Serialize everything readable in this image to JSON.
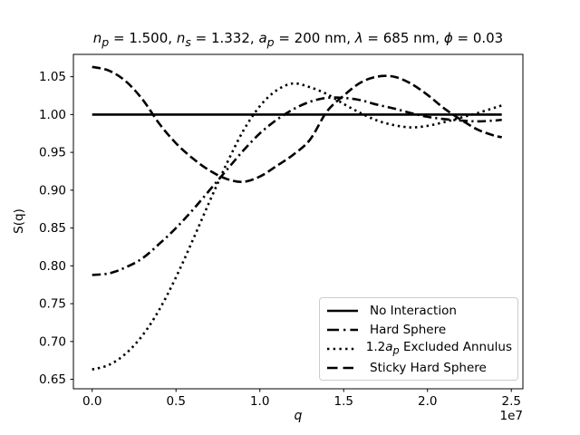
{
  "title_html": "<i>n</i><sub><i>p</i></sub> = 1.500, <i>n</i><sub><i>s</i></sub> = 1.332, <i>a</i><sub><i>p</i></sub> = 200 nm, <i>λ</i> = 685 nm, <i>ϕ</i> = 0.03",
  "axes": {
    "ylabel": "S(q)",
    "xlabel_html": "<i>q</i>",
    "offset_label": "1e7"
  },
  "legend": {
    "items": [
      {
        "label_html": "No Interaction",
        "style": "solid"
      },
      {
        "label_html": "Hard Sphere",
        "style": "dashdot"
      },
      {
        "label_html": "1.2<i>a</i><sub><i>p</i></sub> Excluded Annulus",
        "style": "dotted"
      },
      {
        "label_html": "Sticky Hard Sphere",
        "style": "dashed"
      }
    ]
  },
  "colors": {
    "line": "#000000",
    "text": "#000000",
    "legend_border": "#cccccc",
    "background": "#ffffff"
  },
  "chart_data": {
    "type": "line",
    "title": "n_p = 1.500, n_s = 1.332, a_p = 200 nm, lambda = 685 nm, phi = 0.03",
    "xlabel": "q",
    "ylabel": "S(q)",
    "x_scale_factor": "1e7",
    "grid": false,
    "legend_position": "lower right",
    "xlim": [
      -0.112,
      2.569
    ],
    "ylim": [
      0.6375,
      1.0795
    ],
    "x_tick_values": [
      0.0,
      0.5,
      1.0,
      1.5,
      2.0,
      2.5
    ],
    "x_tick_labels": [
      "0.0",
      "0.5",
      "1.0",
      "1.5",
      "2.0",
      "2.5"
    ],
    "y_tick_values": [
      0.65,
      0.7,
      0.75,
      0.8,
      0.85,
      0.9,
      0.95,
      1.0,
      1.05
    ],
    "y_tick_labels": [
      "0.65",
      "0.70",
      "0.75",
      "0.80",
      "0.85",
      "0.90",
      "0.95",
      "1.00",
      "1.05"
    ],
    "x": [
      0.0,
      0.1,
      0.2,
      0.3,
      0.4,
      0.5,
      0.6,
      0.7,
      0.8,
      0.9,
      1.0,
      1.1,
      1.2,
      1.3,
      1.4,
      1.5,
      1.6,
      1.7,
      1.8,
      1.9,
      2.0,
      2.1,
      2.2,
      2.3,
      2.4,
      2.443
    ],
    "series": [
      {
        "name": "No Interaction",
        "linestyle": "solid",
        "values": [
          1.0,
          1.0,
          1.0,
          1.0,
          1.0,
          1.0,
          1.0,
          1.0,
          1.0,
          1.0,
          1.0,
          1.0,
          1.0,
          1.0,
          1.0,
          1.0,
          1.0,
          1.0,
          1.0,
          1.0,
          1.0,
          1.0,
          1.0,
          1.0,
          1.0,
          1.0
        ]
      },
      {
        "name": "Hard Sphere",
        "linestyle": "dashdot",
        "values": [
          0.788,
          0.79,
          0.798,
          0.81,
          0.829,
          0.85,
          0.874,
          0.9,
          0.926,
          0.952,
          0.975,
          0.993,
          1.007,
          1.017,
          1.022,
          1.022,
          1.019,
          1.013,
          1.008,
          1.002,
          0.997,
          0.994,
          0.992,
          0.991,
          0.992,
          0.993
        ]
      },
      {
        "name": "1.2a_p Excluded Annulus",
        "linestyle": "dotted",
        "values": [
          0.663,
          0.669,
          0.684,
          0.708,
          0.742,
          0.785,
          0.834,
          0.885,
          0.934,
          0.978,
          1.011,
          1.032,
          1.041,
          1.036,
          1.027,
          1.014,
          1.002,
          0.992,
          0.986,
          0.983,
          0.985,
          0.99,
          0.996,
          1.002,
          1.009,
          1.012
        ]
      },
      {
        "name": "Sticky Hard Sphere",
        "linestyle": "dashed",
        "values": [
          1.063,
          1.058,
          1.044,
          1.02,
          0.988,
          0.962,
          0.942,
          0.926,
          0.915,
          0.911,
          0.918,
          0.932,
          0.947,
          0.967,
          1.004,
          1.025,
          1.042,
          1.05,
          1.05,
          1.041,
          1.026,
          1.008,
          0.993,
          0.98,
          0.972,
          0.97
        ]
      }
    ]
  }
}
